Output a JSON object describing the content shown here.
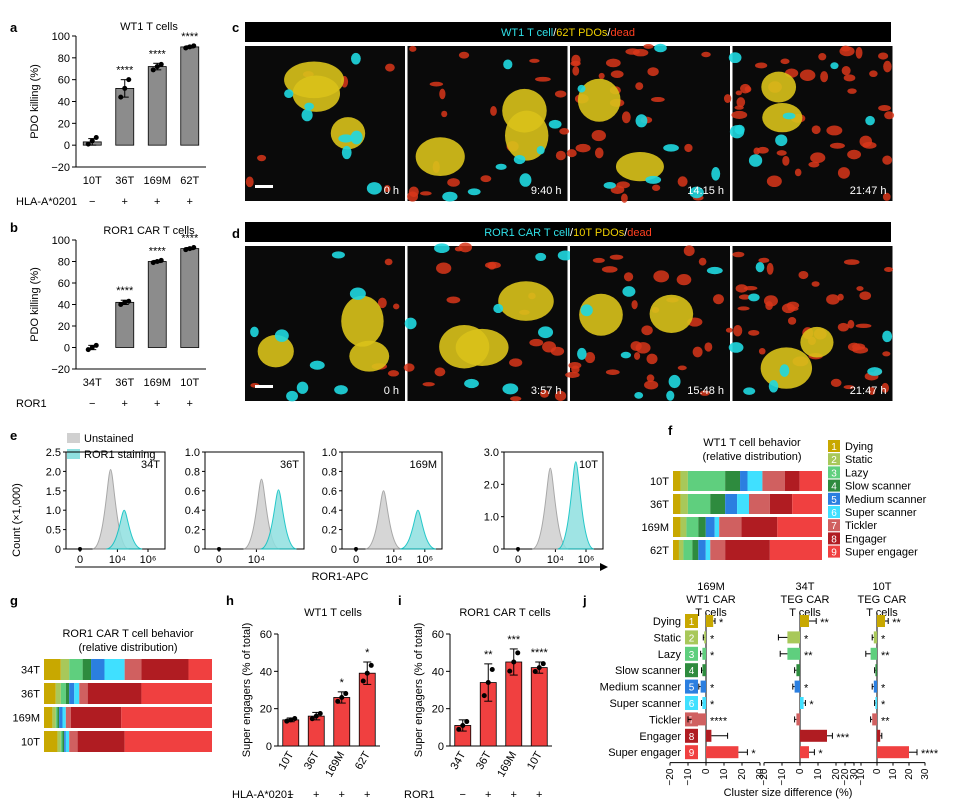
{
  "panel_letters": {
    "a": "a",
    "b": "b",
    "c": "c",
    "d": "d",
    "e": "e",
    "f": "f",
    "g": "g",
    "h": "h",
    "i": "i",
    "j": "j"
  },
  "chart_data": [
    {
      "panel": "a",
      "type": "bar",
      "title": "WT1 T cells",
      "ylabel": "PDO killing (%)",
      "ylim": [
        -20,
        100
      ],
      "yticks": [
        "−20",
        "0",
        "20",
        "40",
        "60",
        "80",
        "100"
      ],
      "categories": [
        "10T",
        "36T",
        "169M",
        "62T"
      ],
      "values": [
        3,
        52,
        72,
        90
      ],
      "errors": [
        3,
        8,
        3,
        1
      ],
      "points": [
        [
          1,
          4,
          7
        ],
        [
          44,
          52,
          60
        ],
        [
          69,
          72,
          74
        ],
        [
          89,
          90,
          91
        ]
      ],
      "significance": [
        "",
        "****",
        "****",
        "****"
      ],
      "condition_label": "HLA-A*0201",
      "condition_values": [
        "−",
        "+",
        "+",
        "+"
      ]
    },
    {
      "panel": "b",
      "type": "bar",
      "title": "ROR1 CAR T cells",
      "ylabel": "PDO killing (%)",
      "ylim": [
        -20,
        100
      ],
      "yticks": [
        "−20",
        "0",
        "20",
        "40",
        "60",
        "80",
        "100"
      ],
      "categories": [
        "34T",
        "36T",
        "169M",
        "10T"
      ],
      "values": [
        0,
        42,
        80,
        92
      ],
      "errors": [
        2,
        2,
        1,
        1
      ],
      "points": [
        [
          -2,
          0,
          2
        ],
        [
          40,
          42,
          43
        ],
        [
          79,
          80,
          81
        ],
        [
          91,
          92,
          93
        ]
      ],
      "significance": [
        "",
        "****",
        "****",
        "****"
      ],
      "condition_label": "ROR1",
      "condition_values": [
        "−",
        "+",
        "+",
        "+"
      ]
    },
    {
      "panel": "e",
      "type": "histogram",
      "ylabel": "Count (×1,000)",
      "xlabel": "ROR1-APC",
      "legend": [
        "Unstained",
        "ROR1 staining"
      ],
      "colors": {
        "unstained": "#d0d0d0",
        "stained": "#8fe0e0",
        "stained_line": "#00bfc0"
      },
      "plots": [
        {
          "name": "34T",
          "ymax": 2.5,
          "yticks": [
            "0",
            "0.5",
            "1.0",
            "1.5",
            "2.0",
            "2.5"
          ],
          "xticks": [
            "0",
            "10⁴",
            "10⁶"
          ],
          "unstained_peak": [
            1.8,
            2.05
          ],
          "stained_peak": [
            2.6,
            1.0
          ]
        },
        {
          "name": "36T",
          "ymax": 1.0,
          "yticks": [
            "0",
            "0.2",
            "0.4",
            "0.6",
            "0.8",
            "1.0"
          ],
          "xticks": [
            "0",
            "10⁴"
          ],
          "unstained_peak": [
            2.5,
            0.72
          ],
          "stained_peak": [
            3.5,
            0.61
          ]
        },
        {
          "name": "169M",
          "ymax": 1.0,
          "yticks": [
            "0",
            "0.2",
            "0.4",
            "0.6",
            "0.8",
            "1.0"
          ],
          "xticks": [
            "0",
            "10⁴",
            "10⁶"
          ],
          "unstained_peak": [
            1.6,
            0.6
          ],
          "stained_peak": [
            3.6,
            0.4
          ]
        },
        {
          "name": "10T",
          "ymax": 3.0,
          "yticks": [
            "0",
            "1.0",
            "2.0",
            "3.0"
          ],
          "xticks": [
            "0",
            "10⁴",
            "10⁶"
          ],
          "unstained_peak": [
            1.9,
            2.5
          ],
          "stained_peak": [
            3.4,
            2.7
          ]
        }
      ]
    },
    {
      "panel": "f",
      "type": "stacked-bar-horizontal",
      "title": "WT1 T cell behavior",
      "subtitle": "(relative distribution)",
      "categories": [
        "10T",
        "36T",
        "169M",
        "62T"
      ],
      "legend": [
        "Dying",
        "Static",
        "Lazy",
        "Slow scanner",
        "Medium scanner",
        "Super scanner",
        "Tickler",
        "Engager",
        "Super engager"
      ],
      "legend_numbers": [
        "1",
        "2",
        "3",
        "4",
        "5",
        "6",
        "7",
        "8",
        "9"
      ],
      "series_colors": [
        "#c8a800",
        "#a8c85a",
        "#5fcf7e",
        "#2e8b3e",
        "#2b7fe0",
        "#40e0ff",
        "#d06060",
        "#b01c22",
        "#f04040"
      ],
      "values": [
        [
          5,
          5,
          25,
          10,
          5,
          10,
          15,
          10,
          15
        ],
        [
          5,
          5,
          15,
          10,
          8,
          8,
          14,
          15,
          20
        ],
        [
          5,
          4,
          8,
          5,
          6,
          3,
          15,
          24,
          30
        ],
        [
          4,
          3,
          6,
          4,
          5,
          3,
          10,
          30,
          35
        ]
      ]
    },
    {
      "panel": "g",
      "type": "stacked-bar-horizontal",
      "title": "ROR1 CAR T cell behavior",
      "subtitle": "(relative distribution)",
      "categories": [
        "34T",
        "36T",
        "169M",
        "10T"
      ],
      "values": [
        [
          10,
          5,
          8,
          5,
          8,
          12,
          10,
          28,
          14
        ],
        [
          7,
          3,
          3,
          2,
          3,
          3,
          5,
          32,
          42
        ],
        [
          5,
          2,
          1,
          1,
          2,
          2,
          3,
          30,
          54
        ],
        [
          8,
          2,
          1,
          1,
          1,
          2,
          5,
          28,
          52
        ]
      ]
    },
    {
      "panel": "h",
      "type": "bar",
      "title": "WT1 T cells",
      "ylabel": "Super engagers (% of total)",
      "ylim": [
        0,
        60
      ],
      "yticks": [
        "0",
        "20",
        "40",
        "60"
      ],
      "categories": [
        "10T",
        "36T",
        "169M",
        "62T"
      ],
      "values": [
        14,
        16,
        26,
        39
      ],
      "errors": [
        1,
        2,
        3,
        6
      ],
      "significance": [
        "",
        "",
        "*",
        "*"
      ],
      "condition_label": "HLA-A*0201",
      "condition_values": [
        "−",
        "+",
        "+",
        "+"
      ],
      "bar_color": "#f04040"
    },
    {
      "panel": "i",
      "type": "bar",
      "title": "ROR1 CAR T cells",
      "ylabel": "Super engagers (% of total)",
      "ylim": [
        0,
        60
      ],
      "yticks": [
        "0",
        "20",
        "40",
        "60"
      ],
      "categories": [
        "34T",
        "36T",
        "169M",
        "10T"
      ],
      "values": [
        11,
        34,
        45,
        42
      ],
      "errors": [
        3,
        10,
        7,
        3
      ],
      "significance": [
        "",
        "**",
        "***",
        "****"
      ],
      "condition_label": "ROR1",
      "condition_values": [
        "−",
        "+",
        "+",
        "+"
      ],
      "bar_color": "#f04040"
    },
    {
      "panel": "j",
      "type": "bar-horizontal",
      "xlabel": "Cluster size difference (%)",
      "xlim": [
        -20,
        30
      ],
      "xticks": [
        "−20",
        "−10",
        "0",
        "10",
        "20",
        "30"
      ],
      "categories": [
        "Dying",
        "Static",
        "Lazy",
        "Slow scanner",
        "Medium scanner",
        "Super scanner",
        "Tickler",
        "Engager",
        "Super engager"
      ],
      "groups": [
        {
          "title1": "169M",
          "title2": "WT1 CAR",
          "title3": "T cells",
          "values": [
            4,
            -1,
            -2,
            -2,
            -3,
            -2,
            -8,
            3,
            18
          ],
          "errors": [
            1,
            0.5,
            1,
            0.5,
            1,
            0.5,
            2,
            9,
            5
          ],
          "significance": [
            "*",
            "*",
            "*",
            "",
            "*",
            "*",
            "****",
            "",
            "*"
          ]
        },
        {
          "title1": "34T",
          "title2": "TEG CAR",
          "title3": "T cells",
          "values": [
            5,
            -7,
            -7,
            -2,
            -3,
            2,
            -2,
            15,
            5
          ],
          "errors": [
            4,
            5,
            4,
            1,
            1,
            1,
            1,
            3,
            3
          ],
          "significance": [
            "**",
            "*",
            "**",
            "",
            "*",
            "*",
            "",
            "***",
            "*"
          ]
        },
        {
          "title1": "10T",
          "title2": "TEG CAR",
          "title3": "T cells",
          "values": [
            5,
            -2,
            -4,
            -1,
            -2,
            -1,
            -3,
            2,
            20
          ],
          "errors": [
            2,
            1,
            3,
            0.5,
            1,
            0.5,
            1,
            1,
            5
          ],
          "significance": [
            "**",
            "*",
            "**",
            "",
            "*",
            "*",
            "**",
            "",
            "****"
          ]
        }
      ]
    }
  ],
  "movies": {
    "c": {
      "title_parts": [
        {
          "text": "WT1 T cell",
          "color": "#30e0e8"
        },
        {
          "text": "/",
          "color": "#ffffff"
        },
        {
          "text": "62T PDOs",
          "color": "#f0d000"
        },
        {
          "text": "/",
          "color": "#ffffff"
        },
        {
          "text": "dead",
          "color": "#ff4020"
        }
      ],
      "timestamps": [
        "0 h",
        "9:40 h",
        "14:15 h",
        "21:47 h"
      ]
    },
    "d": {
      "title_parts": [
        {
          "text": "ROR1 CAR T cell",
          "color": "#30e0e8"
        },
        {
          "text": "/",
          "color": "#ffffff"
        },
        {
          "text": "10T PDOs",
          "color": "#f0d000"
        },
        {
          "text": "/",
          "color": "#ffffff"
        },
        {
          "text": "dead",
          "color": "#ff4020"
        }
      ],
      "timestamps": [
        "0 h",
        "3:57 h",
        "15:48 h",
        "21:47 h"
      ]
    }
  }
}
